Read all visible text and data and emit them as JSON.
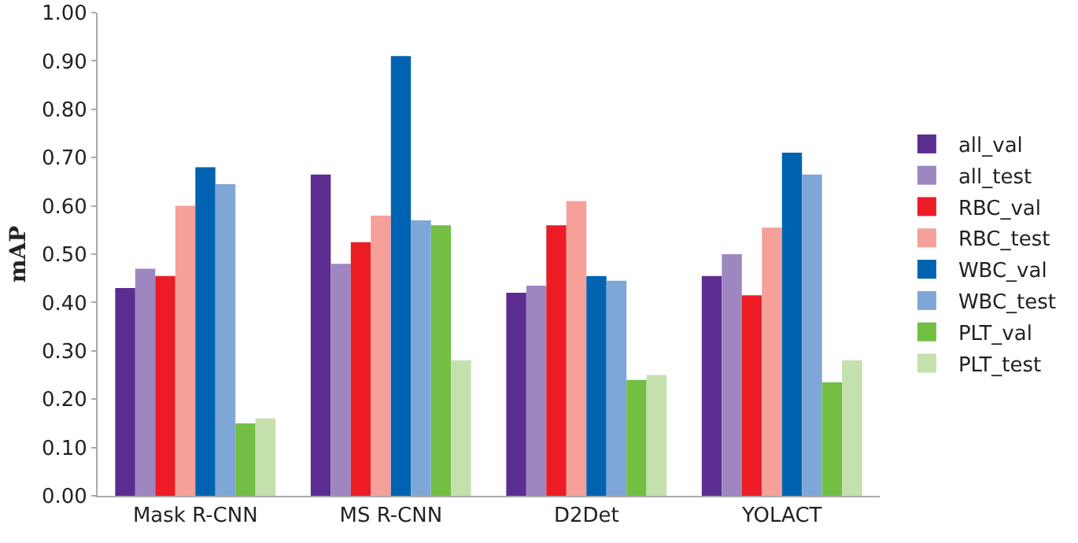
{
  "chart_data": {
    "type": "bar",
    "ylabel": "mAP",
    "categories": [
      "Mask R-CNN",
      "MS R-CNN",
      "D2Det",
      "YOLACT"
    ],
    "series": [
      {
        "name": "all_val",
        "color": "#5c2d91",
        "values": [
          0.43,
          0.665,
          0.42,
          0.455
        ]
      },
      {
        "name": "all_test",
        "color": "#9e86c0",
        "values": [
          0.47,
          0.48,
          0.435,
          0.5
        ]
      },
      {
        "name": "RBC_val",
        "color": "#ec1c24",
        "values": [
          0.455,
          0.525,
          0.56,
          0.415
        ]
      },
      {
        "name": "RBC_test",
        "color": "#f5a099",
        "values": [
          0.6,
          0.58,
          0.61,
          0.555
        ]
      },
      {
        "name": "WBC_val",
        "color": "#0063b1",
        "values": [
          0.68,
          0.91,
          0.455,
          0.71
        ]
      },
      {
        "name": "WBC_test",
        "color": "#7ea7d8",
        "values": [
          0.645,
          0.57,
          0.445,
          0.665
        ]
      },
      {
        "name": "PLT_val",
        "color": "#72bf44",
        "values": [
          0.15,
          0.56,
          0.24,
          0.235
        ]
      },
      {
        "name": "PLT_test",
        "color": "#c4e0ad",
        "values": [
          0.16,
          0.28,
          0.25,
          0.28
        ]
      }
    ],
    "ylim": [
      0,
      1
    ],
    "yticks": [
      {
        "value": 0,
        "label": "0.00"
      },
      {
        "value": 0.1,
        "label": "0.10"
      },
      {
        "value": 0.2,
        "label": "0.20"
      },
      {
        "value": 0.3,
        "label": "0.30"
      },
      {
        "value": 0.4,
        "label": "0.40"
      },
      {
        "value": 0.5,
        "label": "0.50"
      },
      {
        "value": 0.6,
        "label": "0.60"
      },
      {
        "value": 0.7,
        "label": "0.70"
      },
      {
        "value": 0.8,
        "label": "0.80"
      },
      {
        "value": 0.9,
        "label": "0.90"
      },
      {
        "value": 1,
        "label": "1.00"
      }
    ],
    "grid": false,
    "legend": "right"
  }
}
